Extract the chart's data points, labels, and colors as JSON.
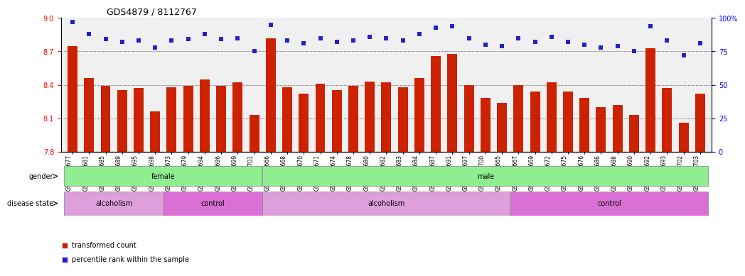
{
  "title": "GDS4879 / 8112767",
  "samples": [
    "GSM1085677",
    "GSM1085681",
    "GSM1085685",
    "GSM1085689",
    "GSM1085695",
    "GSM1085698",
    "GSM1085673",
    "GSM1085679",
    "GSM1085694",
    "GSM1085696",
    "GSM1085699",
    "GSM1085701",
    "GSM1085666",
    "GSM1085668",
    "GSM1085670",
    "GSM1085671",
    "GSM1085674",
    "GSM1085678",
    "GSM1085680",
    "GSM1085682",
    "GSM1085683",
    "GSM1085684",
    "GSM1085687",
    "GSM1085691",
    "GSM1085697",
    "GSM1085700",
    "GSM1085665",
    "GSM1085667",
    "GSM1085669",
    "GSM1085672",
    "GSM1085675",
    "GSM1085676",
    "GSM1085686",
    "GSM1085688",
    "GSM1085690",
    "GSM1085692",
    "GSM1085693",
    "GSM1085702",
    "GSM1085703"
  ],
  "bar_values": [
    8.75,
    8.46,
    8.39,
    8.35,
    8.37,
    8.16,
    8.38,
    8.39,
    8.45,
    8.39,
    8.42,
    8.13,
    8.82,
    8.38,
    8.32,
    8.41,
    8.35,
    8.39,
    8.43,
    8.42,
    8.38,
    8.46,
    8.66,
    8.68,
    8.4,
    8.28,
    8.24,
    8.4,
    8.34,
    8.42,
    8.34,
    8.28,
    8.2,
    8.22,
    8.13,
    8.73,
    8.37,
    8.06,
    8.32
  ],
  "percentile_values": [
    97,
    88,
    84,
    82,
    83,
    78,
    83,
    84,
    88,
    84,
    85,
    75,
    95,
    83,
    81,
    85,
    82,
    83,
    86,
    85,
    83,
    88,
    93,
    94,
    85,
    80,
    79,
    85,
    82,
    86,
    82,
    80,
    78,
    79,
    75,
    94,
    83,
    72,
    81
  ],
  "ylim_left": [
    7.8,
    9.0
  ],
  "ylim_right": [
    0,
    100
  ],
  "bar_color": "#CC2200",
  "dot_color": "#2222CC",
  "background_color": "#FFFFFF",
  "grid_color": "#000000",
  "gender_groups": [
    {
      "label": "female",
      "start": 0,
      "end": 12,
      "color": "#90EE90"
    },
    {
      "label": "male",
      "start": 12,
      "end": 39,
      "color": "#90EE90"
    }
  ],
  "disease_groups": [
    {
      "label": "alcoholism",
      "start": 0,
      "end": 6,
      "color": "#DDA0DD"
    },
    {
      "label": "control",
      "start": 6,
      "end": 12,
      "color": "#DA70D6"
    },
    {
      "label": "alcoholism",
      "start": 12,
      "end": 27,
      "color": "#DDA0DD"
    },
    {
      "label": "control",
      "start": 27,
      "end": 39,
      "color": "#DA70D6"
    }
  ],
  "legend_items": [
    {
      "label": "transformed count",
      "color": "#CC2200",
      "marker": "s"
    },
    {
      "label": "percentile rank within the sample",
      "color": "#2222CC",
      "marker": "s"
    }
  ],
  "left_yticks": [
    7.8,
    8.1,
    8.4,
    8.7,
    9.0
  ],
  "right_yticks": [
    0,
    25,
    50,
    75,
    100
  ]
}
